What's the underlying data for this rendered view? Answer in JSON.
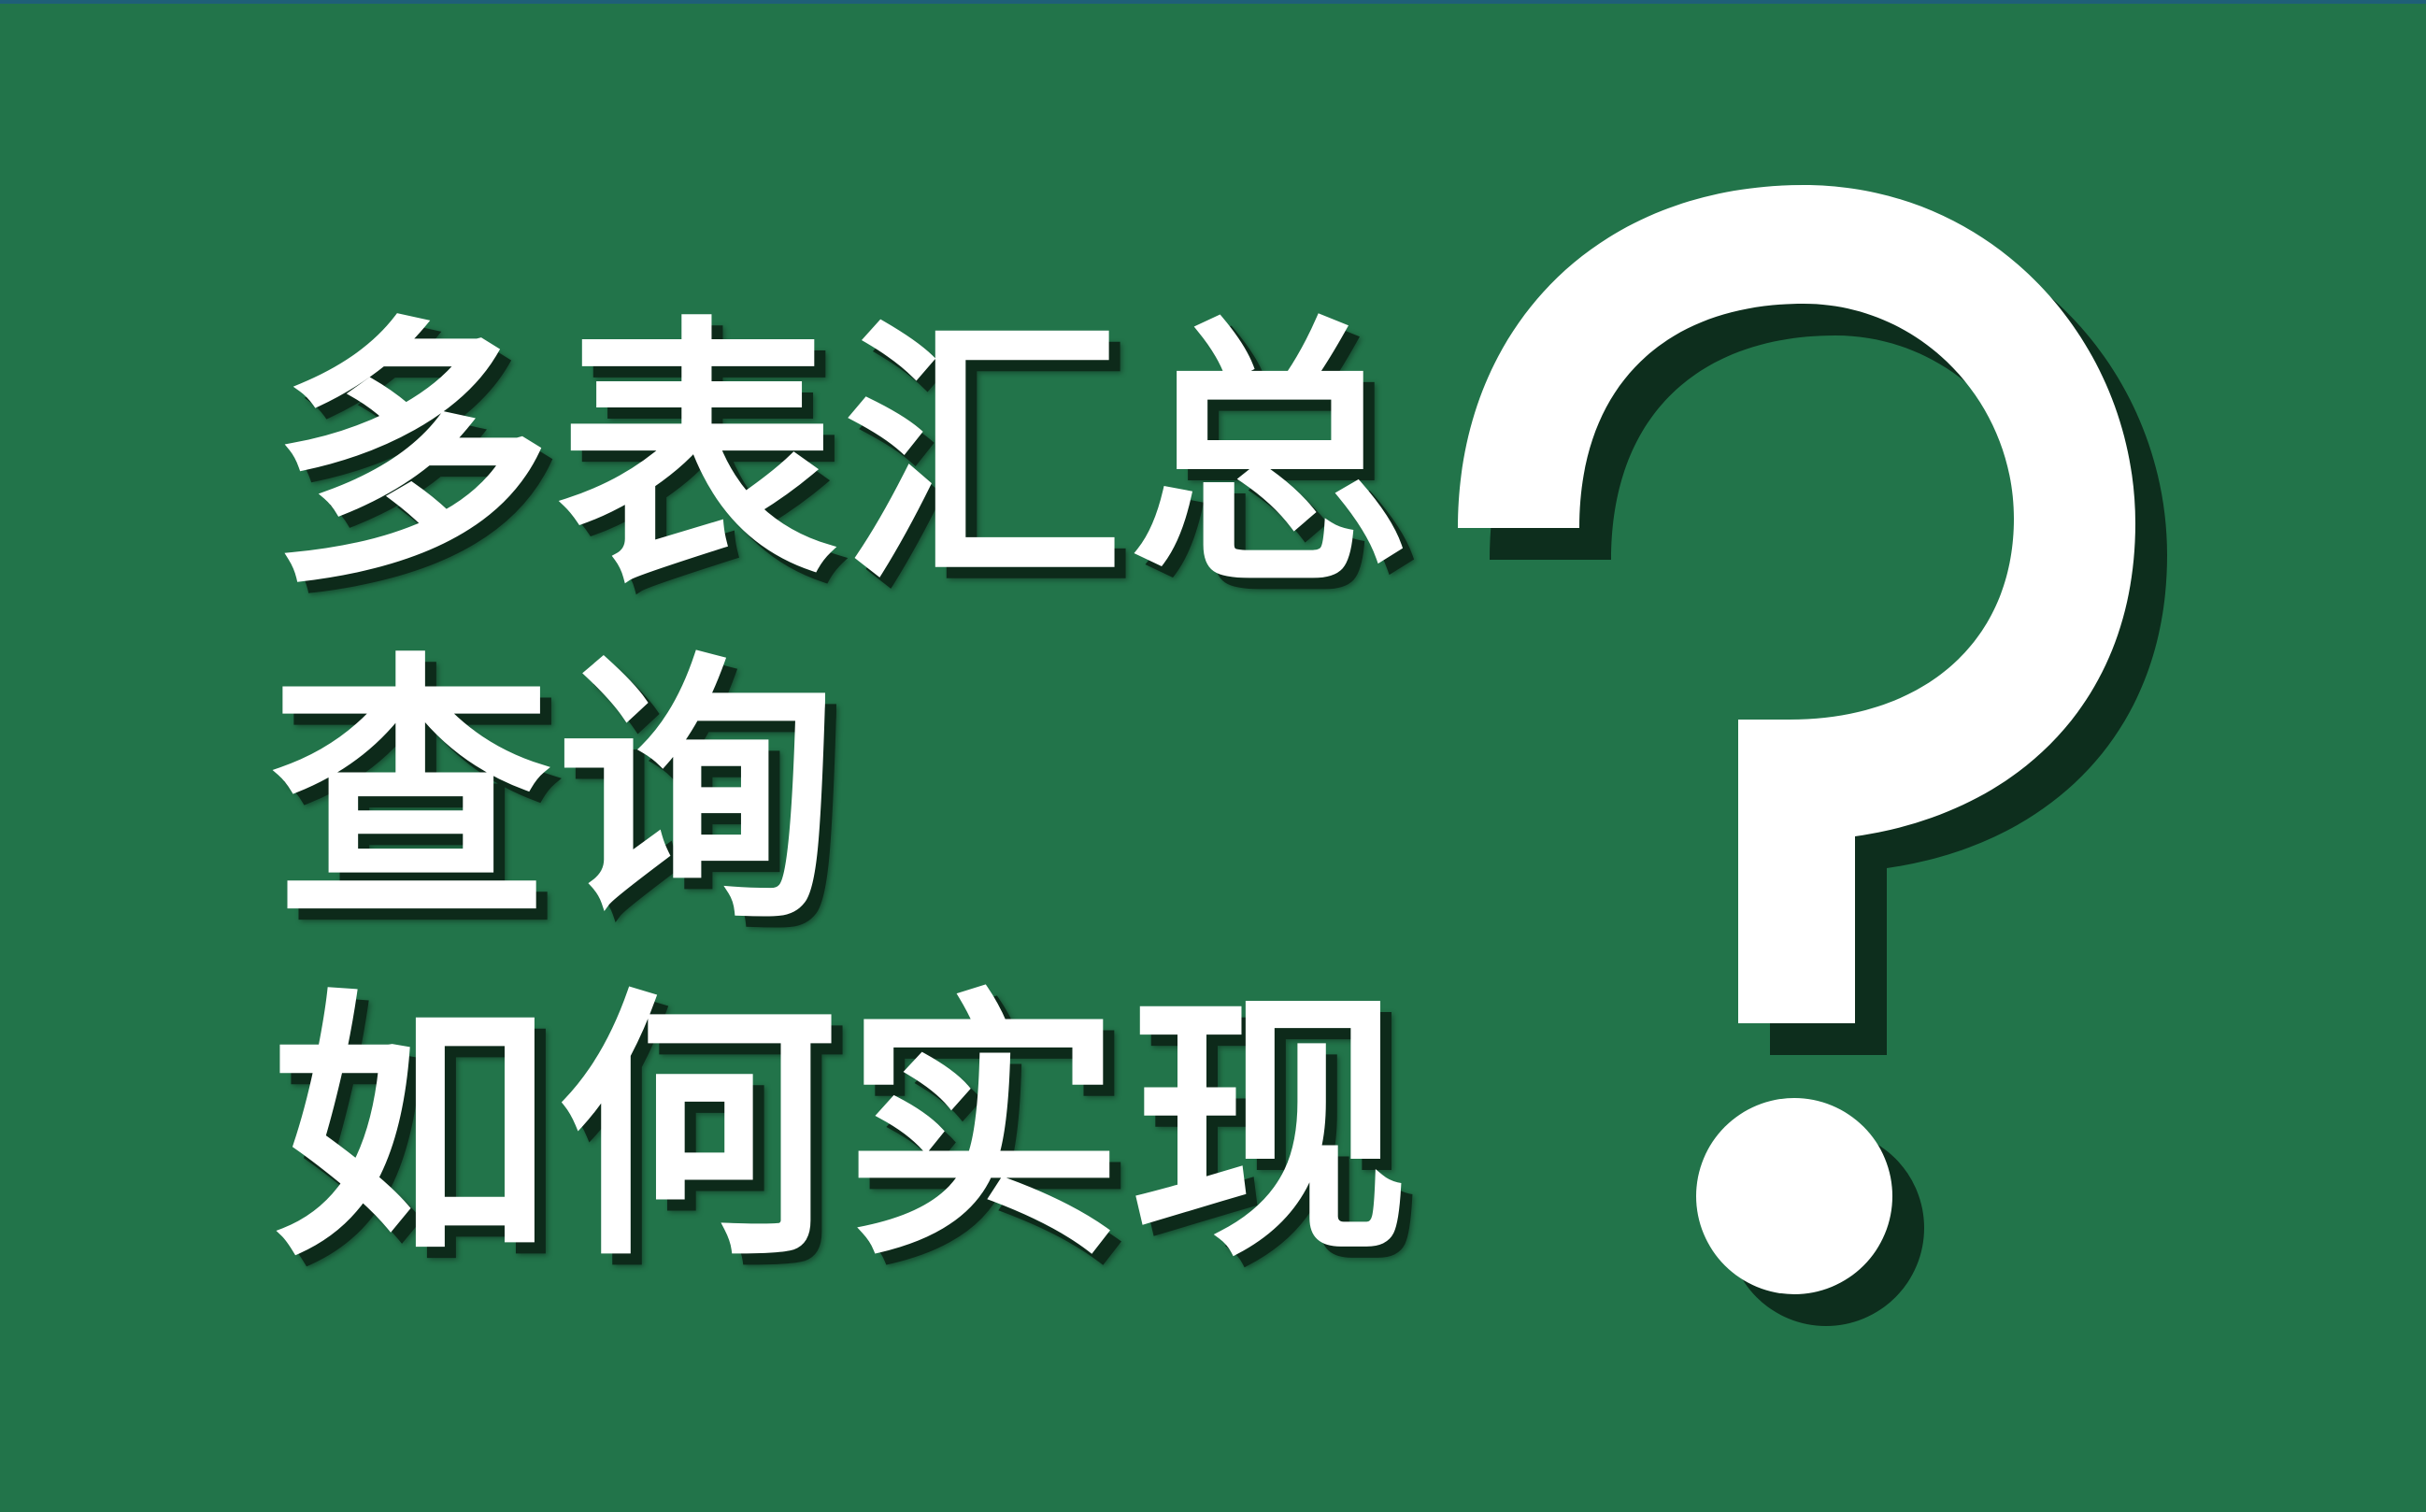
{
  "title": {
    "line1": "多表汇总",
    "line2": "查询",
    "line3": "如何实现"
  },
  "colors": {
    "background": "#22744a",
    "text": "#ffffff",
    "shadow": "#0d2a1a"
  },
  "icons": {
    "question_mark": "question-mark-icon"
  }
}
